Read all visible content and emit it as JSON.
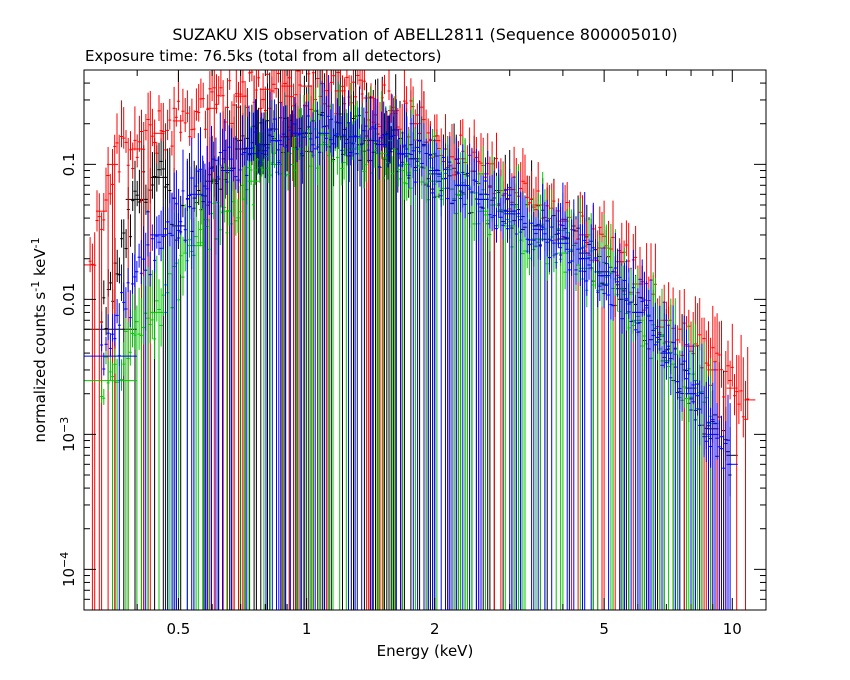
{
  "chart_data": {
    "type": "scatter",
    "title": "SUZAKU XIS observation of ABELL2811 (Sequence 800005010)",
    "subtitle": "Exposure time: 76.5ks (total from all detectors)",
    "xlabel": "Energy (keV)",
    "ylabel_main": "normalized counts s",
    "ylabel_mid": " keV",
    "ylabel_sup": "-1",
    "xscale": "log",
    "yscale": "log",
    "xlim": [
      0.3,
      12
    ],
    "ylim": [
      5e-05,
      0.5
    ],
    "grid": false,
    "x_ticks": [
      {
        "value": 0.5,
        "label": "0.5"
      },
      {
        "value": 1,
        "label": "1"
      },
      {
        "value": 2,
        "label": "2"
      },
      {
        "value": 5,
        "label": "5"
      },
      {
        "value": 10,
        "label": "10"
      }
    ],
    "y_ticks": [
      {
        "value": 0.1,
        "label": "0.1",
        "sup": ""
      },
      {
        "value": 0.01,
        "label": "0.01",
        "sup": ""
      },
      {
        "value": 0.001,
        "label": "10",
        "sup": "−3"
      },
      {
        "value": 0.0001,
        "label": "10",
        "sup": "−4"
      }
    ],
    "series": [
      {
        "color": "#000000",
        "points": [
          [
            0.33,
            0.006,
            0.07,
            0.004
          ],
          [
            0.4,
            0.055,
            0.02,
            0.03
          ],
          [
            0.45,
            0.08,
            0.015,
            0.05
          ],
          [
            0.5,
            0.035,
            0.012,
            0.03
          ],
          [
            0.6,
            0.075,
            0.012,
            0.06
          ],
          [
            0.7,
            0.13,
            0.01,
            0.08
          ],
          [
            0.8,
            0.14,
            0.01,
            0.09
          ],
          [
            0.9,
            0.16,
            0.01,
            0.1
          ],
          [
            1.0,
            0.17,
            0.01,
            0.11
          ],
          [
            1.2,
            0.16,
            0.01,
            0.1
          ],
          [
            1.4,
            0.15,
            0.01,
            0.1
          ],
          [
            1.6,
            0.13,
            0.01,
            0.08
          ],
          [
            1.8,
            0.11,
            0.01,
            0.07
          ],
          [
            2.0,
            0.085,
            0.01,
            0.06
          ],
          [
            2.3,
            0.07,
            0.01,
            0.05
          ],
          [
            2.6,
            0.055,
            0.01,
            0.045
          ],
          [
            3.0,
            0.045,
            0.01,
            0.04
          ],
          [
            3.5,
            0.035,
            0.01,
            0.035
          ],
          [
            4.0,
            0.028,
            0.01,
            0.03
          ],
          [
            4.5,
            0.022,
            0.01,
            0.03
          ],
          [
            5.0,
            0.016,
            0.01,
            0.03
          ],
          [
            5.5,
            0.012,
            0.01,
            0.035
          ],
          [
            6.0,
            0.008,
            0.01,
            0.04
          ],
          [
            7.0,
            0.004,
            0.01,
            0.05
          ],
          [
            8.0,
            0.0022,
            0.01,
            0.07
          ],
          [
            9.0,
            0.0011,
            0.01,
            0.08
          ],
          [
            10.0,
            0.0007,
            0.01,
            0.08
          ]
        ]
      },
      {
        "color": "#ff0000",
        "points": [
          [
            0.31,
            0.018,
            0.01,
            0.03
          ],
          [
            0.33,
            0.045,
            0.01,
            0.03
          ],
          [
            0.35,
            0.1,
            0.01,
            0.03
          ],
          [
            0.4,
            0.13,
            0.01,
            0.025
          ],
          [
            0.45,
            0.17,
            0.01,
            0.025
          ],
          [
            0.5,
            0.21,
            0.01,
            0.02
          ],
          [
            0.6,
            0.26,
            0.01,
            0.02
          ],
          [
            0.7,
            0.32,
            0.01,
            0.02
          ],
          [
            0.8,
            0.36,
            0.01,
            0.02
          ],
          [
            0.9,
            0.38,
            0.01,
            0.02
          ],
          [
            1.0,
            0.38,
            0.01,
            0.02
          ],
          [
            1.2,
            0.35,
            0.01,
            0.02
          ],
          [
            1.4,
            0.31,
            0.01,
            0.02
          ],
          [
            1.6,
            0.25,
            0.01,
            0.02
          ],
          [
            1.8,
            0.2,
            0.01,
            0.02
          ],
          [
            2.0,
            0.15,
            0.01,
            0.025
          ],
          [
            2.3,
            0.11,
            0.01,
            0.025
          ],
          [
            2.6,
            0.085,
            0.01,
            0.025
          ],
          [
            3.0,
            0.065,
            0.01,
            0.025
          ],
          [
            3.5,
            0.05,
            0.01,
            0.025
          ],
          [
            4.0,
            0.038,
            0.01,
            0.025
          ],
          [
            4.5,
            0.03,
            0.01,
            0.03
          ],
          [
            5.0,
            0.024,
            0.01,
            0.03
          ],
          [
            5.5,
            0.019,
            0.01,
            0.03
          ],
          [
            6.0,
            0.013,
            0.01,
            0.035
          ],
          [
            7.0,
            0.007,
            0.01,
            0.04
          ],
          [
            8.0,
            0.0045,
            0.01,
            0.05
          ],
          [
            9.0,
            0.003,
            0.01,
            0.06
          ],
          [
            10.0,
            0.0022,
            0.01,
            0.07
          ],
          [
            11.0,
            0.0018,
            0.01,
            0.08
          ]
        ]
      },
      {
        "color": "#00c800",
        "points": [
          [
            0.33,
            0.0025,
            0.07,
            0.004
          ],
          [
            0.45,
            0.008,
            0.015,
            0.08
          ],
          [
            0.55,
            0.025,
            0.015,
            0.06
          ],
          [
            0.65,
            0.045,
            0.01,
            0.05
          ],
          [
            0.75,
            0.075,
            0.01,
            0.05
          ],
          [
            0.85,
            0.1,
            0.01,
            0.05
          ],
          [
            0.95,
            0.13,
            0.01,
            0.06
          ],
          [
            1.1,
            0.14,
            0.01,
            0.06
          ],
          [
            1.3,
            0.13,
            0.01,
            0.06
          ],
          [
            1.5,
            0.12,
            0.01,
            0.06
          ],
          [
            1.7,
            0.1,
            0.01,
            0.06
          ],
          [
            2.0,
            0.075,
            0.01,
            0.06
          ],
          [
            2.3,
            0.06,
            0.01,
            0.06
          ],
          [
            2.6,
            0.045,
            0.01,
            0.06
          ],
          [
            3.0,
            0.035,
            0.01,
            0.06
          ],
          [
            3.5,
            0.028,
            0.01,
            0.06
          ],
          [
            4.0,
            0.022,
            0.01,
            0.06
          ],
          [
            4.5,
            0.017,
            0.01,
            0.06
          ],
          [
            5.0,
            0.013,
            0.01,
            0.06
          ],
          [
            6.0,
            0.007,
            0.01,
            0.06
          ],
          [
            7.0,
            0.0035,
            0.01,
            0.07
          ],
          [
            8.0,
            0.002,
            0.01,
            0.08
          ],
          [
            9.0,
            0.0012,
            0.01,
            0.08
          ]
        ]
      },
      {
        "color": "#0000ff",
        "points": [
          [
            0.33,
            0.0038,
            0.07,
            0.004
          ],
          [
            0.45,
            0.03,
            0.015,
            0.04
          ],
          [
            0.55,
            0.06,
            0.012,
            0.04
          ],
          [
            0.65,
            0.09,
            0.01,
            0.04
          ],
          [
            0.75,
            0.12,
            0.01,
            0.04
          ],
          [
            0.85,
            0.15,
            0.01,
            0.04
          ],
          [
            0.95,
            0.17,
            0.01,
            0.04
          ],
          [
            1.1,
            0.17,
            0.01,
            0.04
          ],
          [
            1.3,
            0.16,
            0.01,
            0.04
          ],
          [
            1.5,
            0.14,
            0.01,
            0.04
          ],
          [
            1.7,
            0.12,
            0.01,
            0.04
          ],
          [
            2.0,
            0.09,
            0.01,
            0.04
          ],
          [
            2.3,
            0.07,
            0.01,
            0.045
          ],
          [
            2.6,
            0.055,
            0.01,
            0.045
          ],
          [
            3.0,
            0.043,
            0.01,
            0.045
          ],
          [
            3.5,
            0.033,
            0.01,
            0.045
          ],
          [
            4.0,
            0.026,
            0.01,
            0.05
          ],
          [
            4.5,
            0.02,
            0.01,
            0.05
          ],
          [
            5.0,
            0.015,
            0.01,
            0.05
          ],
          [
            6.0,
            0.008,
            0.01,
            0.05
          ],
          [
            7.0,
            0.004,
            0.01,
            0.06
          ],
          [
            8.0,
            0.002,
            0.01,
            0.07
          ],
          [
            9.0,
            0.001,
            0.01,
            0.08
          ],
          [
            10.0,
            0.0006,
            0.01,
            0.08
          ]
        ]
      }
    ]
  }
}
